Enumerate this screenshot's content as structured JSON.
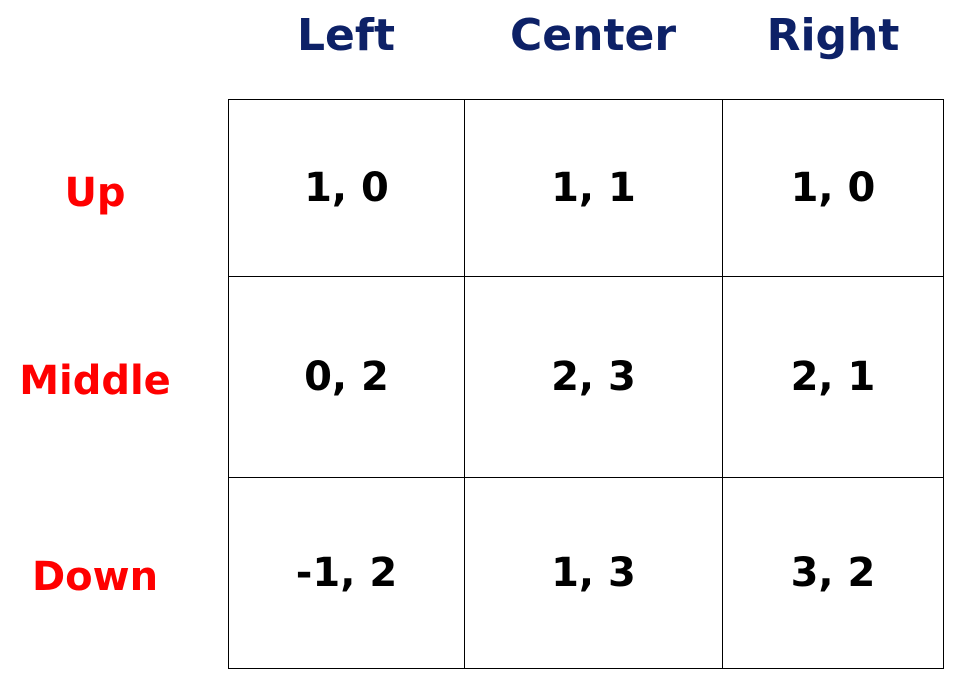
{
  "columns": [
    "Left",
    "Center",
    "Right"
  ],
  "rows": [
    "Up",
    "Middle",
    "Down"
  ],
  "payoffs": [
    [
      "1, 0",
      "1, 1",
      "1, 0"
    ],
    [
      "0, 2",
      "2, 3",
      "2, 1"
    ],
    [
      "-1, 2",
      "1, 3",
      "3, 2"
    ]
  ],
  "colors": {
    "column_header": "#0d2167",
    "row_header": "#ff0000",
    "cell_text": "#000000",
    "grid_line": "#000000"
  }
}
